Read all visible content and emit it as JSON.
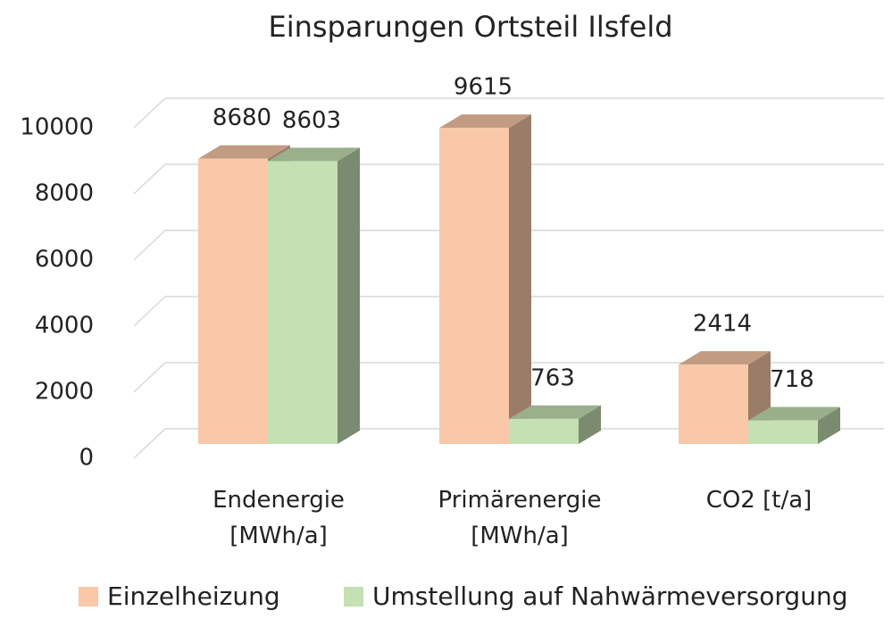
{
  "chart_data": {
    "type": "bar3d",
    "title": "Einsparungen Ortsteil Ilsfeld",
    "categories": [
      "Endenergie [MWh/a]",
      "Primärenergie [MWh/a]",
      "CO2 [t/a]"
    ],
    "series": [
      {
        "name": "Einzelheizung",
        "color": "#f8c8a8",
        "values": [
          8680,
          9615,
          2414
        ]
      },
      {
        "name": "Umstellung auf Nahwärmeversorgung",
        "color": "#c5e0b3",
        "values": [
          8603,
          763,
          718
        ]
      }
    ],
    "ylim": [
      0,
      10000
    ],
    "yticks": [
      0,
      2000,
      4000,
      6000,
      8000,
      10000
    ],
    "grid": true,
    "legend": "bottom"
  }
}
